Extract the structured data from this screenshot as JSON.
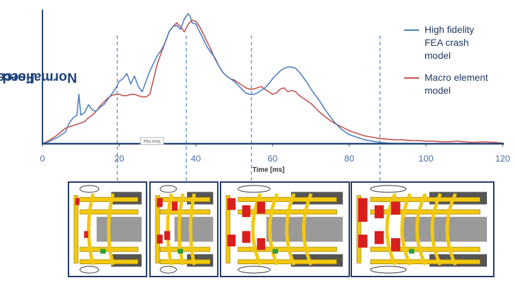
{
  "chart_data": {
    "type": "line",
    "title": "",
    "xlabel": "Time [ms]",
    "ylabel_line1": "Normalised Impact",
    "ylabel_line2": "Force",
    "xlim": [
      0,
      120
    ],
    "ylim": [
      0,
      1.0
    ],
    "xticks": [
      0,
      20,
      40,
      60,
      80,
      100,
      120
    ],
    "grid": false,
    "legend_position": "right",
    "plot_area_tag": "Plot Area",
    "vlines": [
      19.5,
      37.5,
      54.5,
      88.0
    ],
    "series": [
      {
        "name": "High fidelity FEA crash model",
        "legend_lines": [
          "High fidelity",
          "FEA crash",
          "model"
        ],
        "color": "#4a7ec2",
        "x": [
          0,
          2,
          4,
          6,
          7,
          8,
          9,
          9.5,
          10,
          11,
          12,
          13,
          14,
          15,
          16,
          17,
          18,
          19,
          20,
          21,
          22,
          23,
          24,
          25,
          26,
          27,
          28,
          29,
          30,
          31,
          32,
          33,
          34,
          35,
          36,
          37,
          38,
          38.5,
          39,
          40,
          41,
          42,
          43,
          44,
          45,
          46,
          47,
          48,
          49,
          50,
          51,
          52,
          53,
          54,
          55,
          56,
          57,
          58,
          59,
          60,
          61,
          62,
          63,
          64,
          65,
          66,
          67,
          68,
          69,
          70,
          72,
          74,
          76,
          78,
          80,
          82,
          84,
          86,
          88,
          90,
          92,
          95,
          100,
          105,
          110,
          115,
          120
        ],
        "y": [
          0.0,
          0.02,
          0.05,
          0.09,
          0.16,
          0.2,
          0.22,
          0.38,
          0.22,
          0.24,
          0.3,
          0.26,
          0.25,
          0.28,
          0.3,
          0.34,
          0.38,
          0.42,
          0.48,
          0.5,
          0.54,
          0.46,
          0.52,
          0.44,
          0.4,
          0.48,
          0.56,
          0.62,
          0.68,
          0.72,
          0.78,
          0.86,
          0.9,
          0.91,
          0.88,
          0.96,
          1.0,
          0.98,
          0.93,
          0.92,
          0.86,
          0.8,
          0.74,
          0.7,
          0.66,
          0.6,
          0.55,
          0.52,
          0.5,
          0.48,
          0.45,
          0.42,
          0.39,
          0.38,
          0.38,
          0.39,
          0.41,
          0.43,
          0.46,
          0.5,
          0.53,
          0.56,
          0.58,
          0.59,
          0.59,
          0.58,
          0.55,
          0.51,
          0.47,
          0.42,
          0.34,
          0.25,
          0.17,
          0.11,
          0.07,
          0.05,
          0.03,
          0.02,
          0.01,
          0.005,
          0.003,
          0.002,
          0.001,
          0.0,
          0.0,
          0.0,
          0.0
        ]
      },
      {
        "name": "Macro element model",
        "legend_lines": [
          "Macro element",
          "model"
        ],
        "color": "#c0504d",
        "x": [
          0,
          2,
          4,
          6,
          7,
          8,
          9,
          10,
          11,
          12,
          13,
          14,
          15,
          16,
          17,
          18,
          19,
          20,
          21,
          22,
          23,
          24,
          25,
          26,
          27,
          28,
          29,
          30,
          31,
          32,
          33,
          34,
          35,
          36,
          37,
          38,
          39,
          40,
          41,
          42,
          43,
          44,
          45,
          46,
          47,
          48,
          49,
          50,
          51,
          52,
          53,
          54,
          55,
          56,
          57,
          58,
          59,
          60,
          61,
          62,
          63,
          64,
          65,
          66,
          67,
          68,
          69,
          70,
          72,
          74,
          76,
          78,
          80,
          82,
          84,
          86,
          88,
          90,
          92,
          94,
          96,
          98,
          100,
          102,
          104,
          106,
          108,
          110,
          112,
          115,
          118,
          120
        ],
        "y": [
          0.0,
          0.03,
          0.07,
          0.12,
          0.13,
          0.14,
          0.15,
          0.16,
          0.17,
          0.2,
          0.22,
          0.25,
          0.29,
          0.32,
          0.35,
          0.37,
          0.38,
          0.38,
          0.37,
          0.37,
          0.38,
          0.38,
          0.37,
          0.36,
          0.36,
          0.38,
          0.5,
          0.62,
          0.7,
          0.78,
          0.86,
          0.9,
          0.93,
          0.9,
          0.86,
          0.92,
          0.95,
          0.94,
          0.9,
          0.84,
          0.78,
          0.72,
          0.65,
          0.6,
          0.55,
          0.52,
          0.5,
          0.49,
          0.47,
          0.45,
          0.43,
          0.42,
          0.42,
          0.43,
          0.44,
          0.42,
          0.4,
          0.38,
          0.39,
          0.42,
          0.43,
          0.4,
          0.41,
          0.4,
          0.37,
          0.35,
          0.33,
          0.31,
          0.25,
          0.2,
          0.16,
          0.13,
          0.1,
          0.08,
          0.06,
          0.05,
          0.04,
          0.035,
          0.03,
          0.03,
          0.025,
          0.025,
          0.02,
          0.02,
          0.015,
          0.015,
          0.02,
          0.015,
          0.01,
          0.015,
          0.01,
          0.005
        ]
      }
    ]
  },
  "snapshots": [
    {
      "label": ""
    },
    {
      "label": ""
    },
    {
      "label": ""
    },
    {
      "label": ""
    }
  ]
}
